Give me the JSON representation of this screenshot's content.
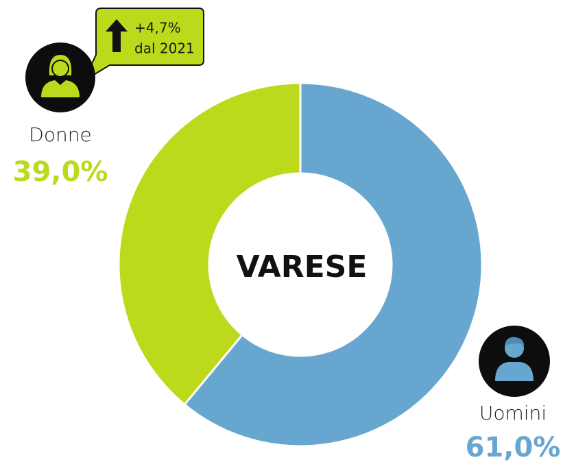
{
  "chart_data": {
    "type": "pie",
    "donut": true,
    "categories": [
      "Uomini",
      "Donne"
    ],
    "values": [
      61.0,
      39.0
    ],
    "value_labels": [
      "61,0%",
      "39,0%"
    ],
    "colors": [
      "#67a7cf",
      "#bcd91b"
    ],
    "center_label": "VARESE",
    "annotation": [
      "+4,7%",
      "dal 2021"
    ]
  }
}
